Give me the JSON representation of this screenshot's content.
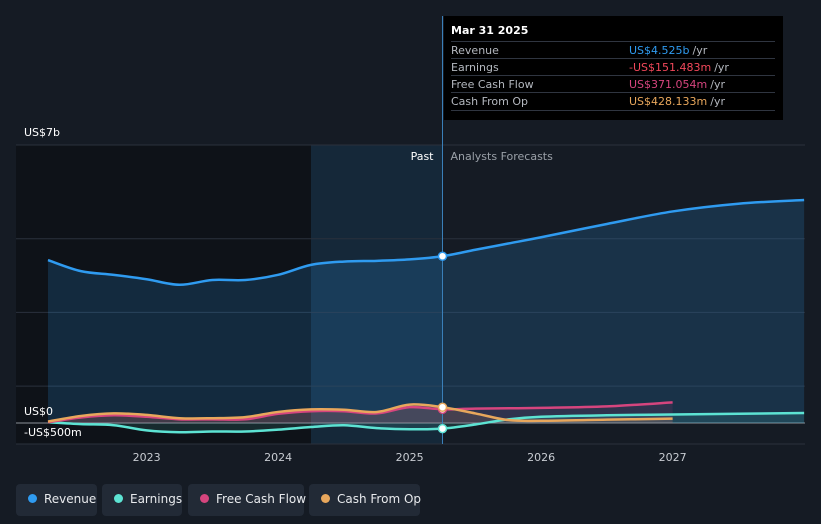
{
  "chart_data": {
    "type": "line",
    "y_top_label": "US$7b",
    "y_zero_label": "US$0",
    "y_min_label": "-US$500m",
    "ylim": [
      -500,
      7000
    ],
    "xlim": [
      2022.25,
      2028.0
    ],
    "x_ticks": [
      "2023",
      "2024",
      "2025",
      "2026",
      "2027"
    ],
    "x_tick_values": [
      2023,
      2024,
      2025,
      2026,
      2027
    ],
    "past_label": "Past",
    "forecast_label": "Analysts Forecasts",
    "past_end": 2025.25,
    "highlight_start": 2024.25,
    "series": [
      {
        "name": "Revenue",
        "color": "#2f9bf0",
        "fill": true,
        "x": [
          2022.25,
          2022.5,
          2022.75,
          2023.0,
          2023.25,
          2023.5,
          2023.75,
          2024.0,
          2024.25,
          2024.5,
          2024.75,
          2025.0,
          2025.25,
          2025.5,
          2025.75,
          2026.0,
          2026.5,
          2027.0,
          2027.5,
          2028.0
        ],
        "values": [
          4420,
          4120,
          4020,
          3900,
          3750,
          3880,
          3880,
          4020,
          4290,
          4380,
          4400,
          4440,
          4525,
          4700,
          4870,
          5040,
          5400,
          5740,
          5950,
          6050
        ]
      },
      {
        "name": "Earnings",
        "color": "#5de3d3",
        "fill": false,
        "x": [
          2022.25,
          2022.5,
          2022.75,
          2023.0,
          2023.25,
          2023.5,
          2023.75,
          2024.0,
          2024.25,
          2024.5,
          2024.75,
          2025.0,
          2025.25,
          2025.5,
          2025.75,
          2026.0,
          2026.5,
          2027.0,
          2027.5,
          2028.0
        ],
        "values": [
          20,
          -30,
          -60,
          -200,
          -250,
          -230,
          -230,
          -180,
          -110,
          -60,
          -140,
          -170,
          -151.483,
          -40,
          100,
          170,
          210,
          230,
          250,
          270
        ]
      },
      {
        "name": "Free Cash Flow",
        "color": "#d6457e",
        "fill": false,
        "x": [
          2022.25,
          2022.5,
          2022.75,
          2023.0,
          2023.25,
          2023.5,
          2023.75,
          2024.0,
          2024.25,
          2024.5,
          2024.75,
          2025.0,
          2025.25,
          2025.5,
          2026.0,
          2026.5,
          2027.0
        ],
        "values": [
          20,
          150,
          210,
          170,
          100,
          100,
          100,
          250,
          320,
          320,
          260,
          430,
          371.054,
          390,
          410,
          450,
          560
        ]
      },
      {
        "name": "Cash From Op",
        "color": "#e8a75c",
        "fill": false,
        "x": [
          2022.25,
          2022.5,
          2022.75,
          2023.0,
          2023.25,
          2023.5,
          2023.75,
          2024.0,
          2024.25,
          2024.5,
          2024.75,
          2025.0,
          2025.25,
          2025.5,
          2025.75,
          2026.0,
          2026.5,
          2027.0
        ],
        "values": [
          40,
          190,
          260,
          220,
          130,
          130,
          160,
          300,
          370,
          360,
          300,
          500,
          428.133,
          260,
          80,
          60,
          90,
          120
        ]
      }
    ],
    "marker_x": 2025.25,
    "tooltip": {
      "date": "Mar 31 2025",
      "rows": [
        {
          "label": "Revenue",
          "value": "US$4.525b",
          "unit": "/yr",
          "color": "#2f9bf0"
        },
        {
          "label": "Earnings",
          "value": "-US$151.483m",
          "unit": "/yr",
          "color": "#f2485b"
        },
        {
          "label": "Free Cash Flow",
          "value": "US$371.054m",
          "unit": "/yr",
          "color": "#d6457e"
        },
        {
          "label": "Cash From Op",
          "value": "US$428.133m",
          "unit": "/yr",
          "color": "#e8a75c"
        }
      ]
    },
    "legend": [
      {
        "label": "Revenue",
        "color": "#2f9bf0"
      },
      {
        "label": "Earnings",
        "color": "#5de3d3"
      },
      {
        "label": "Free Cash Flow",
        "color": "#d6457e"
      },
      {
        "label": "Cash From Op",
        "color": "#e8a75c"
      }
    ]
  }
}
